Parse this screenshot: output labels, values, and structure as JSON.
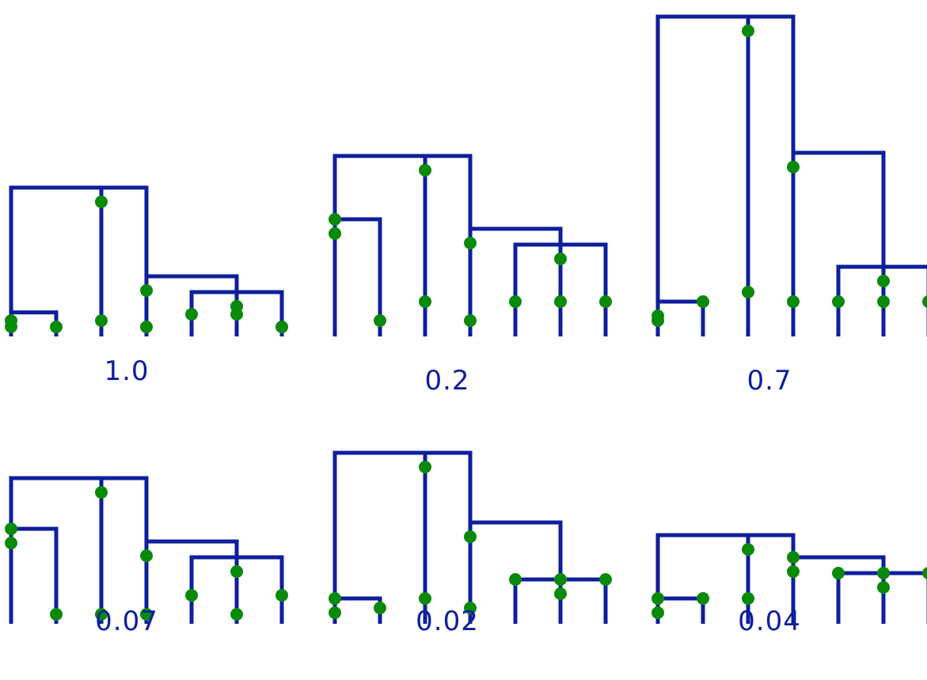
{
  "colors": {
    "branch": "#0e1f9c",
    "marker": "#0a8a0a",
    "caption": "#0e1f9c",
    "background": "#ffffff"
  },
  "panels": [
    {
      "label": "1.0",
      "tips": [
        0.25,
        0.15,
        0.25,
        0.15,
        0.35,
        0.35,
        0.15
      ],
      "groups": [
        {
          "tips": [
            0,
            1
          ],
          "height": 0.38
        },
        {
          "tips": [
            4,
            5,
            6
          ],
          "height": 0.7
        },
        {
          "tips": [
            3,
            "g1"
          ],
          "height": 0.95
        },
        {
          "tips": [
            "g0",
            2,
            "g2"
          ],
          "height": 2.35
        }
      ]
    },
    {
      "label": "0.2",
      "tips": [
        1.85,
        0.25,
        0.55,
        0.25,
        0.55,
        0.55,
        0.55
      ],
      "groups": [
        {
          "tips": [
            0,
            1
          ],
          "height": 1.85
        },
        {
          "tips": [
            4,
            5,
            6
          ],
          "height": 1.45
        },
        {
          "tips": [
            3,
            "g1"
          ],
          "height": 1.7
        },
        {
          "tips": [
            "g0",
            2,
            "g2"
          ],
          "height": 2.85
        }
      ]
    },
    {
      "label": "0.7",
      "tips": [
        0.25,
        0.55,
        0.7,
        0.55,
        0.55,
        0.55,
        0.55
      ],
      "groups": [
        {
          "tips": [
            0,
            1
          ],
          "height": 0.55
        },
        {
          "tips": [
            4,
            5,
            6
          ],
          "height": 1.1
        },
        {
          "tips": [
            3,
            "g1"
          ],
          "height": 2.9
        },
        {
          "tips": [
            "g0",
            2,
            "g2"
          ],
          "height": 5.05
        }
      ]
    },
    {
      "label": "0.07",
      "tips": [
        1.5,
        0.15,
        0.15,
        0.15,
        0.45,
        0.15,
        0.45
      ],
      "groups": [
        {
          "tips": [
            0,
            1
          ],
          "height": 1.5
        },
        {
          "tips": [
            4,
            5,
            6
          ],
          "height": 1.05
        },
        {
          "tips": [
            3,
            "g1"
          ],
          "height": 1.3
        },
        {
          "tips": [
            "g0",
            2,
            "g2"
          ],
          "height": 2.3
        }
      ]
    },
    {
      "label": "0.02",
      "tips": [
        0.4,
        0.25,
        0.4,
        0.25,
        0.7,
        0.7,
        0.7
      ],
      "groups": [
        {
          "tips": [
            0,
            1
          ],
          "height": 0.4
        },
        {
          "tips": [
            4,
            5,
            6
          ],
          "height": 0.7
        },
        {
          "tips": [
            3,
            "g1"
          ],
          "height": 1.6
        },
        {
          "tips": [
            "g0",
            2,
            "g2"
          ],
          "height": 2.7
        }
      ]
    },
    {
      "label": "0.04",
      "tips": [
        0.4,
        0.4,
        0.4,
        1.05,
        0.8,
        0.8,
        0.8
      ],
      "groups": [
        {
          "tips": [
            0,
            1
          ],
          "height": 0.4
        },
        {
          "tips": [
            4,
            5,
            6
          ],
          "height": 0.8
        },
        {
          "tips": [
            3,
            "g1"
          ],
          "height": 1.05
        },
        {
          "tips": [
            "g0",
            2,
            "g2"
          ],
          "height": 1.4
        }
      ]
    }
  ]
}
